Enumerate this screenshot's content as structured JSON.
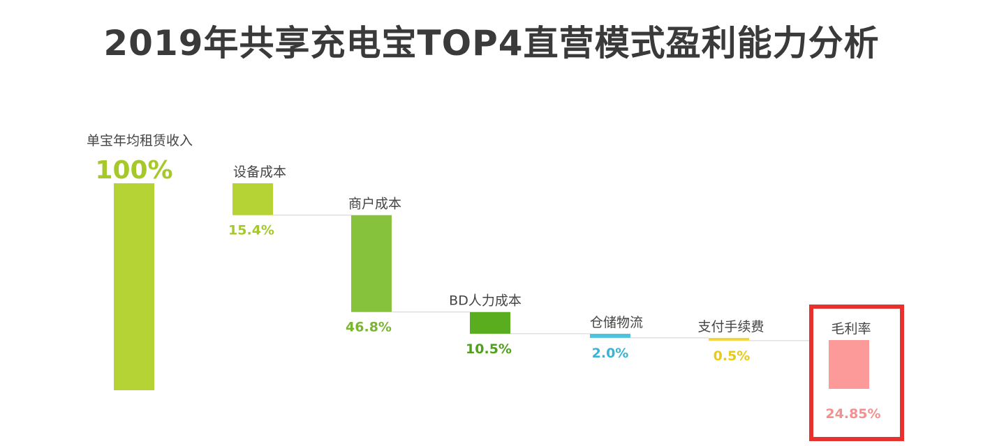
{
  "chart_data": {
    "type": "waterfall",
    "title": "2019年共享充电宝TOP4直营模式盈利能力分析",
    "ylim": [
      0,
      100
    ],
    "bars": [
      {
        "label": "单宝年均租赁收入",
        "value": 100,
        "value_label": "100%",
        "kind": "total",
        "color": "#b5d334",
        "label_color": "#a6c82a"
      },
      {
        "label": "设备成本",
        "value": 15.4,
        "value_label": "15.4%",
        "kind": "decrease",
        "color": "#b5d334",
        "label_color": "#a6c82a"
      },
      {
        "label": "商户成本",
        "value": 46.8,
        "value_label": "46.8%",
        "kind": "decrease",
        "color": "#86c23c",
        "label_color": "#79b531"
      },
      {
        "label": "BD人力成本",
        "value": 10.5,
        "value_label": "10.5%",
        "kind": "decrease",
        "color": "#5aad1f",
        "label_color": "#4fa01a"
      },
      {
        "label": "仓储物流",
        "value": 2.0,
        "value_label": "2.0%",
        "kind": "decrease",
        "color": "#4ec3dd",
        "label_color": "#3bb3d3"
      },
      {
        "label": "支付手续费",
        "value": 0.5,
        "value_label": "0.5%",
        "kind": "decrease",
        "color": "#f3d53a",
        "label_color": "#e9c91c"
      },
      {
        "label": "毛利率",
        "value": 24.85,
        "value_label": "24.85%",
        "kind": "result",
        "color": "#fc9a9a",
        "label_color": "#f39090",
        "highlight": true
      }
    ],
    "highlight_color": "#e8302c",
    "connector_color": "#d0d0d0"
  }
}
